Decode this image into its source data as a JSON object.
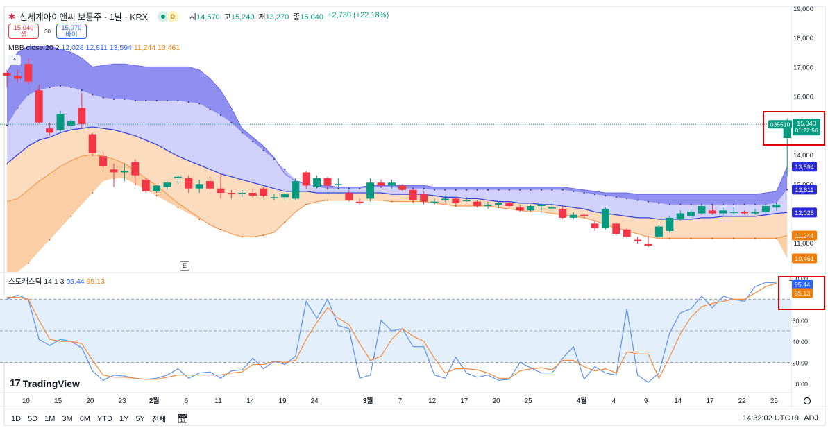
{
  "header": {
    "logo_text": "✱",
    "title": "신세계아이앤씨 보통주 · 1날 · KRX",
    "delay_badge": "D",
    "ohlc": [
      {
        "label": "시",
        "value": "14,570"
      },
      {
        "label": "고",
        "value": "15,240"
      },
      {
        "label": "저",
        "value": "13,270"
      },
      {
        "label": "종",
        "value": "15,040"
      }
    ],
    "change": "+2,730 (+22.18%)"
  },
  "trade": {
    "sell_price": "15,040",
    "sell_label": "셀",
    "spread": "30",
    "buy_price": "15,070",
    "buy_label": "바이"
  },
  "indicator_legend": {
    "name": "MBB close 20 2",
    "v1": "12,028",
    "v2": "12,811",
    "v3": "13,594",
    "v4": "11,244",
    "v5": "10,461"
  },
  "collapse_icon": "^",
  "stoch_legend": {
    "name": "스토캐스틱 14 1 3",
    "k": "95.44",
    "d": "95.13"
  },
  "event_marker": "E",
  "branding": {
    "mark": "17",
    "name": "TradingView"
  },
  "bottom_bar": {
    "ranges": [
      "1D",
      "5D",
      "1M",
      "3M",
      "6M",
      "YTD",
      "1Y",
      "5Y",
      "전체"
    ],
    "calendar_icon": "calendar-icon",
    "clock": "14:32:02 UTC+9",
    "adj": "ADJ"
  },
  "price_tags": {
    "symbol": "035510",
    "price": "15,040",
    "countdown": "01:22:56",
    "upper_outer": "13,594",
    "upper_inner": "12,811",
    "mid": "12,028",
    "lower_inner": "11,244",
    "lower_outer": "10,461"
  },
  "stoch_tags": {
    "k": "95.44",
    "d": "95.13"
  },
  "colors": {
    "up": "#089981",
    "down": "#f23645",
    "band_outer_upper": "#7b7bf0",
    "band_inner_upper": "#c9c9fb",
    "band_lower": "#fbd8b8",
    "band_lower_outer": "#fbc99c",
    "mid_line": "#3344dd",
    "orange_line": "#f79a55",
    "stoch_k": "#5b8ef0",
    "stoch_d": "#f5893a",
    "stoch_bg": "#e3f0fb",
    "highlight": "#d80000"
  },
  "chart_data": [
    {
      "type": "candlestick",
      "title": "신세계아이앤씨 보통주 · 1날 · KRX",
      "ylim": [
        10000,
        19000
      ],
      "y_ticks": [
        11000,
        12000,
        13000,
        14000,
        15000,
        16000,
        17000,
        18000,
        19000
      ],
      "y_tick_labels": [
        "11,000",
        "12,000",
        "13,000",
        "14,000",
        "15,000",
        "16,000",
        "17,000",
        "18,000",
        "19,000"
      ],
      "x_tick_labels": [
        {
          "i": 1,
          "label": "10"
        },
        {
          "i": 4,
          "label": "15"
        },
        {
          "i": 7,
          "label": "20"
        },
        {
          "i": 10,
          "label": "23"
        },
        {
          "i": 13,
          "label": "2월"
        },
        {
          "i": 16,
          "label": "6"
        },
        {
          "i": 19,
          "label": "11"
        },
        {
          "i": 22,
          "label": "14"
        },
        {
          "i": 25,
          "label": "19"
        },
        {
          "i": 28,
          "label": "24"
        },
        {
          "i": 33,
          "label": "3월"
        },
        {
          "i": 36,
          "label": "7"
        },
        {
          "i": 39,
          "label": "12"
        },
        {
          "i": 42,
          "label": "17"
        },
        {
          "i": 45,
          "label": "20"
        },
        {
          "i": 48,
          "label": "25"
        },
        {
          "i": 53,
          "label": "4월"
        },
        {
          "i": 56,
          "label": "4"
        },
        {
          "i": 59,
          "label": "9"
        },
        {
          "i": 62,
          "label": "14"
        },
        {
          "i": 65,
          "label": "17"
        },
        {
          "i": 68,
          "label": "22"
        },
        {
          "i": 71,
          "label": "25"
        }
      ],
      "candles": [
        [
          16800,
          16900,
          16300,
          16700
        ],
        [
          16700,
          16900,
          16500,
          16600
        ],
        [
          17100,
          17300,
          16400,
          16500
        ],
        [
          16200,
          16400,
          15050,
          15100
        ],
        [
          14900,
          15100,
          14650,
          14750
        ],
        [
          14850,
          15500,
          14750,
          15400
        ],
        [
          15000,
          15200,
          14850,
          15150
        ],
        [
          15600,
          16100,
          14900,
          15050
        ],
        [
          14700,
          14750,
          13950,
          14050
        ],
        [
          13950,
          14100,
          13550,
          13600
        ],
        [
          13500,
          13700,
          12900,
          13400
        ],
        [
          13400,
          13700,
          13100,
          13450
        ],
        [
          13750,
          13850,
          12950,
          13300
        ],
        [
          13150,
          13200,
          12700,
          12750
        ],
        [
          12750,
          12950,
          12700,
          12950
        ],
        [
          12900,
          13100,
          12800,
          13050
        ],
        [
          13200,
          13300,
          13000,
          13250
        ],
        [
          13200,
          13300,
          12700,
          12850
        ],
        [
          12850,
          13150,
          12700,
          13000
        ],
        [
          13100,
          13250,
          12800,
          12850
        ],
        [
          12850,
          13350,
          12500,
          12700
        ],
        [
          12700,
          12800,
          12500,
          12650
        ],
        [
          12700,
          12800,
          12550,
          12700
        ],
        [
          12700,
          12850,
          12550,
          12600
        ],
        [
          12850,
          12900,
          12550,
          12600
        ],
        [
          12550,
          12650,
          12450,
          12550
        ],
        [
          12550,
          12700,
          12450,
          12650
        ],
        [
          12500,
          13200,
          12450,
          13100
        ],
        [
          13400,
          13450,
          12850,
          12950
        ],
        [
          12900,
          13300,
          12850,
          13200
        ],
        [
          13200,
          13250,
          12800,
          12950
        ],
        [
          13000,
          13200,
          12900,
          13000
        ],
        [
          12700,
          12800,
          12400,
          12450
        ],
        [
          12400,
          12500,
          12300,
          12350
        ],
        [
          12500,
          13200,
          12400,
          13050
        ],
        [
          13050,
          13150,
          12900,
          12950
        ],
        [
          12950,
          13150,
          12850,
          13050
        ],
        [
          12950,
          13000,
          12750,
          12800
        ],
        [
          12800,
          12850,
          12350,
          12450
        ],
        [
          12650,
          12750,
          12300,
          12400
        ],
        [
          12350,
          12500,
          12300,
          12400
        ],
        [
          12450,
          12600,
          12400,
          12500
        ],
        [
          12500,
          12550,
          12300,
          12350
        ],
        [
          12450,
          12550,
          12400,
          12450
        ],
        [
          12400,
          12450,
          12200,
          12250
        ],
        [
          12250,
          12400,
          12150,
          12300
        ],
        [
          12300,
          12400,
          12200,
          12350
        ],
        [
          12350,
          12400,
          12200,
          12250
        ],
        [
          12200,
          12300,
          12050,
          12100
        ],
        [
          12100,
          12300,
          12050,
          12250
        ],
        [
          12250,
          12350,
          12100,
          12300
        ],
        [
          12200,
          12400,
          12150,
          12200
        ],
        [
          12150,
          12250,
          11800,
          11850
        ],
        [
          11850,
          12050,
          11800,
          11950
        ],
        [
          11950,
          12000,
          11850,
          11900
        ],
        [
          11650,
          11750,
          11400,
          11500
        ],
        [
          11500,
          12200,
          11450,
          12150
        ],
        [
          11650,
          11700,
          11250,
          11300
        ],
        [
          11450,
          11500,
          11150,
          11200
        ],
        [
          11100,
          11200,
          10950,
          11050
        ],
        [
          10950,
          11200,
          10850,
          10900
        ],
        [
          11200,
          11600,
          11150,
          11550
        ],
        [
          11400,
          11900,
          11350,
          11850
        ],
        [
          11800,
          12100,
          11750,
          12000
        ],
        [
          11900,
          12150,
          11850,
          12050
        ],
        [
          12000,
          12300,
          11950,
          12250
        ],
        [
          12100,
          12300,
          11950,
          12000
        ],
        [
          12000,
          12200,
          11900,
          12100
        ],
        [
          12050,
          12200,
          11950,
          12050
        ],
        [
          12050,
          12100,
          11950,
          12000
        ],
        [
          12000,
          12150,
          11950,
          12050
        ],
        [
          12050,
          12300,
          12000,
          12250
        ],
        [
          12200,
          12350,
          12100,
          12300
        ],
        [
          14570,
          15240,
          13270,
          15040
        ]
      ],
      "bollinger_bands": {
        "upper_outer": [
          16800,
          17500,
          17700,
          17700,
          17700,
          17600,
          17500,
          17300,
          17000,
          17050,
          17100,
          17100,
          17050,
          17000,
          17000,
          17000,
          17000,
          17000,
          16900,
          16600,
          16200,
          15600,
          14900,
          14600,
          14300,
          13900,
          13350,
          13100,
          13000,
          12950,
          12950,
          12900,
          12900,
          12900,
          12950,
          12950,
          12950,
          12950,
          12950,
          12950,
          12900,
          12900,
          12900,
          12900,
          12900,
          12900,
          12900,
          12900,
          12900,
          12900,
          12900,
          12900,
          12900,
          12850,
          12800,
          12750,
          12700,
          12700,
          12700,
          12650,
          12650,
          12650,
          12650,
          12650,
          12650,
          12650,
          12650,
          12650,
          12650,
          12650,
          12650,
          12700,
          12750,
          13594
        ],
        "upper_inner": [
          15000,
          15600,
          16050,
          16200,
          16300,
          16350,
          16300,
          16200,
          16050,
          15950,
          15900,
          15900,
          15850,
          15850,
          15850,
          15850,
          15850,
          15800,
          15750,
          15550,
          15350,
          15100,
          14750,
          14450,
          14150,
          13850,
          13500,
          13150,
          13000,
          12900,
          12850,
          12850,
          12850,
          12850,
          12900,
          12900,
          12900,
          12850,
          12850,
          12850,
          12800,
          12800,
          12800,
          12800,
          12800,
          12800,
          12800,
          12800,
          12800,
          12800,
          12800,
          12800,
          12800,
          12750,
          12700,
          12650,
          12600,
          12550,
          12500,
          12450,
          12400,
          12350,
          12300,
          12300,
          12300,
          12300,
          12300,
          12300,
          12300,
          12300,
          12300,
          12300,
          12350,
          12811
        ],
        "mid": [
          13700,
          14000,
          14300,
          14500,
          14600,
          14750,
          14850,
          14900,
          14950,
          14900,
          14850,
          14750,
          14650,
          14500,
          14350,
          14150,
          13950,
          13800,
          13650,
          13500,
          13350,
          13250,
          13150,
          13050,
          12950,
          12850,
          12750,
          12750,
          12750,
          12700,
          12700,
          12700,
          12700,
          12700,
          12700,
          12700,
          12650,
          12650,
          12650,
          12650,
          12600,
          12550,
          12550,
          12500,
          12500,
          12450,
          12400,
          12400,
          12350,
          12350,
          12300,
          12300,
          12250,
          12200,
          12150,
          12050,
          12000,
          11950,
          11900,
          11850,
          11850,
          11800,
          11800,
          11800,
          11800,
          11850,
          11850,
          11900,
          11900,
          11900,
          11900,
          11950,
          12000,
          12028
        ],
        "lower_inner": [
          12400,
          12500,
          12800,
          13100,
          13350,
          13600,
          13800,
          13950,
          14000,
          13950,
          13850,
          13700,
          13450,
          13200,
          12950,
          12650,
          12350,
          12100,
          11850,
          11600,
          11450,
          11300,
          11200,
          11200,
          11250,
          11350,
          11700,
          12050,
          12300,
          12400,
          12450,
          12450,
          12450,
          12450,
          12450,
          12450,
          12400,
          12400,
          12400,
          12400,
          12350,
          12300,
          12250,
          12250,
          12250,
          12250,
          12200,
          12150,
          12100,
          12050,
          12050,
          12000,
          11950,
          11900,
          11850,
          11750,
          11600,
          11500,
          11400,
          11300,
          11200,
          11150,
          11150,
          11150,
          11150,
          11150,
          11150,
          11150,
          11150,
          11150,
          11150,
          11150,
          11150,
          11244
        ],
        "lower_outer": [
          9800,
          10000,
          10300,
          10700,
          11100,
          11500,
          11900,
          12300,
          12700,
          13100,
          13200,
          13200,
          13000,
          12800,
          12600,
          12400,
          12200,
          12000,
          11800,
          11650,
          11450,
          11300,
          11200,
          11200,
          11250,
          11350,
          11700,
          12050,
          12300,
          12400,
          12450,
          12450,
          12450,
          12450,
          12450,
          12450,
          12400,
          12400,
          12400,
          12400,
          12350,
          12300,
          12250,
          12250,
          12250,
          12250,
          12200,
          12150,
          12100,
          12050,
          12050,
          12000,
          11950,
          11900,
          11850,
          11750,
          11600,
          11500,
          11400,
          11300,
          11200,
          11150,
          11150,
          11150,
          11150,
          11150,
          11150,
          11150,
          11150,
          11150,
          11150,
          11150,
          11150,
          10461
        ]
      }
    },
    {
      "type": "line",
      "title": "스토캐스틱 14 1 3",
      "ylim": [
        -8,
        104
      ],
      "y_ticks": [
        0,
        20,
        40,
        60,
        80,
        100
      ],
      "y_tick_labels": [
        "0.00",
        "20.00",
        "40.00",
        "60.00",
        "80.00",
        "100.00"
      ],
      "dashed_levels": [
        80,
        50,
        20
      ],
      "series": [
        {
          "name": "95.44",
          "color": "#5b8ef0",
          "values": [
            80,
            84,
            80,
            42,
            36,
            42,
            40,
            34,
            12,
            3,
            8,
            7,
            5,
            4,
            5,
            8,
            14,
            5,
            10,
            11,
            5,
            12,
            13,
            24,
            14,
            21,
            18,
            26,
            78,
            62,
            80,
            55,
            52,
            5,
            8,
            60,
            50,
            52,
            35,
            35,
            8,
            5,
            25,
            10,
            6,
            8,
            3,
            4,
            20,
            15,
            10,
            10,
            24,
            35,
            4,
            16,
            10,
            8,
            71,
            8,
            1,
            10,
            48,
            67,
            71,
            83,
            72,
            83,
            80,
            78,
            92,
            96,
            95.44
          ]
        },
        {
          "name": "95.13",
          "color": "#f5893a",
          "values": [
            82,
            82,
            80,
            60,
            42,
            40,
            40,
            38,
            22,
            8,
            6,
            6,
            5,
            4,
            4,
            6,
            8,
            8,
            8,
            8,
            8,
            10,
            11,
            18,
            18,
            21,
            20,
            22,
            42,
            58,
            72,
            62,
            56,
            38,
            22,
            26,
            42,
            52,
            45,
            40,
            24,
            10,
            14,
            14,
            13,
            10,
            5,
            5,
            12,
            14,
            15,
            13,
            22,
            22,
            16,
            12,
            14,
            10,
            30,
            28,
            28,
            5,
            25,
            47,
            63,
            73,
            76,
            78,
            80,
            80,
            86,
            92,
            95.13
          ]
        }
      ]
    }
  ]
}
